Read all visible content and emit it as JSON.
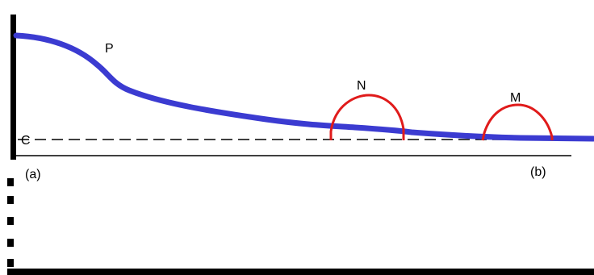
{
  "labels": {
    "curve_p": "P",
    "arc_n": "N",
    "arc_m": "M",
    "dashed_level": "C",
    "left_end": "(a)",
    "right_end": "(b)"
  },
  "colors": {
    "main_curve": "#3b3bd1",
    "arcs": "#e01b1b",
    "axes": "#000000"
  }
}
